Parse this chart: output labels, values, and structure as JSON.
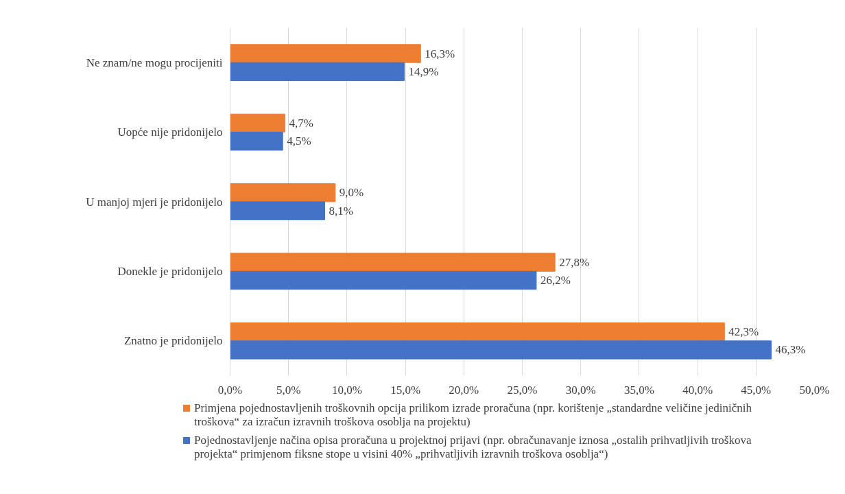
{
  "chart_data": {
    "type": "bar",
    "orientation": "horizontal",
    "categories": [
      "Ne znam/ne mogu procijeniti",
      "Uopće nije pridonijelo",
      "U manjoj mjeri je pridonijelo",
      "Donekle je pridonijelo",
      "Znatno je pridonijelo"
    ],
    "series": [
      {
        "name": "Primjena pojednostavljenih troškovnih opcija prilikom izrade proračuna (npr. korištenje „standardne veličine jediničnih troškova“ za izračun izravnih troškova osoblja na projektu)",
        "color": "#ed7d31",
        "values": [
          16.3,
          4.7,
          9.0,
          27.8,
          42.3
        ],
        "value_labels": [
          "16,3%",
          "4,7%",
          "9,0%",
          "27,8%",
          "42,3%"
        ]
      },
      {
        "name": "Pojednostavljenje načina opisa proračuna u projektnoj prijavi (npr. obračunavanje iznosa „ostalih prihvatljivih troškova projekta“ primjenom fiksne stope u visini 40% „prihvatljivih izravnih troškova osoblja“)",
        "color": "#4472c4",
        "values": [
          14.9,
          4.5,
          8.1,
          26.2,
          46.3
        ],
        "value_labels": [
          "14,9%",
          "4,5%",
          "8,1%",
          "26,2%",
          "46,3%"
        ]
      }
    ],
    "xlim": [
      0,
      50
    ],
    "xticks": [
      {
        "value": 0,
        "label": "0,0%"
      },
      {
        "value": 5,
        "label": "5,0%"
      },
      {
        "value": 10,
        "label": "10,0%"
      },
      {
        "value": 15,
        "label": "15,0%"
      },
      {
        "value": 20,
        "label": "20,0%"
      },
      {
        "value": 25,
        "label": "25,0%"
      },
      {
        "value": 30,
        "label": "30,0%"
      },
      {
        "value": 35,
        "label": "35,0%"
      },
      {
        "value": 40,
        "label": "40,0%"
      },
      {
        "value": 45,
        "label": "45,0%"
      },
      {
        "value": 50,
        "label": "50,0%"
      }
    ],
    "grid": "x",
    "legend": "bottom"
  }
}
